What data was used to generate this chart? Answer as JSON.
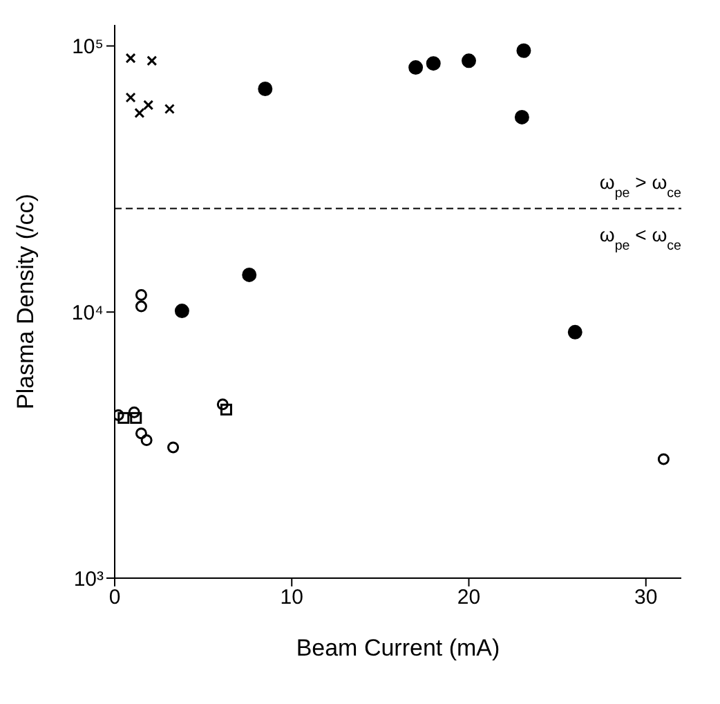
{
  "chart_data": {
    "type": "scatter",
    "xlabel": "Beam Current (mA)",
    "ylabel": "Plasma Density (/cc)",
    "xlim": [
      0,
      32
    ],
    "xticks": [
      0,
      10,
      20,
      30
    ],
    "ylim": [
      1000,
      120000
    ],
    "yticks": [
      {
        "value": 1000,
        "label": "10³"
      },
      {
        "value": 10000,
        "label": "10⁴"
      },
      {
        "value": 100000,
        "label": "10⁵"
      }
    ],
    "log": "y",
    "grid": false,
    "series": [
      {
        "color": "#000000",
        "marker": "cross",
        "x": [
          0.9,
          2.1,
          0.9,
          1.9,
          1.4,
          3.1
        ],
        "values": [
          90000,
          88000,
          64000,
          60000,
          56000,
          58000
        ]
      },
      {
        "color": "#000000",
        "marker": "circle",
        "x": [
          8.5,
          17.0,
          18.0,
          20.0,
          23.1,
          23.0,
          26.0,
          7.6,
          3.8
        ],
        "values": [
          69000,
          83000,
          86000,
          88000,
          96000,
          54000,
          8400,
          13800,
          10100
        ]
      },
      {
        "color": "#000000",
        "marker": "circle",
        "x": [
          1.5,
          1.5,
          0.2,
          1.1,
          1.5,
          1.8,
          3.3,
          6.1,
          31.0
        ],
        "values": [
          11600,
          10500,
          4100,
          4200,
          3500,
          3300,
          3100,
          4500,
          2800
        ]
      },
      {
        "color": "#000000",
        "marker": "square",
        "x": [
          0.5,
          1.2,
          6.3
        ],
        "values": [
          4000,
          4000,
          4300
        ]
      }
    ],
    "ref_lines": [
      {
        "axis": "y",
        "value": 24500,
        "color": "#000000",
        "line_style": "dashed"
      }
    ],
    "annotations": [
      "ω$_{pe}$ > ω$_{ce}$",
      "ω$_{pe}$ < ω$_{ce}$"
    ]
  }
}
